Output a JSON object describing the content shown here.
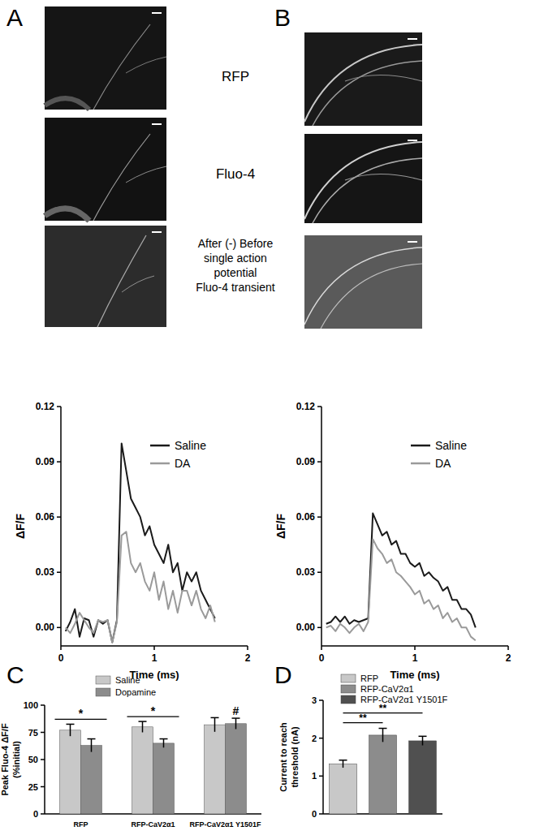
{
  "panel_labels": [
    "A",
    "B",
    "C",
    "D"
  ],
  "image_labels": {
    "rfp": "RFP",
    "fluo4": "Fluo-4",
    "difference": [
      "After (-) Before",
      "single action",
      "potential",
      "Fluo-4 transient"
    ]
  },
  "chart_data": [
    {
      "type": "line",
      "x": [
        0.05,
        0.1,
        0.15,
        0.2,
        0.25,
        0.3,
        0.35,
        0.4,
        0.45,
        0.5,
        0.55,
        0.6,
        0.65,
        0.7,
        0.75,
        0.8,
        0.85,
        0.9,
        0.95,
        1.0,
        1.05,
        1.1,
        1.15,
        1.2,
        1.25,
        1.3,
        1.35,
        1.4,
        1.45,
        1.5,
        1.55,
        1.6,
        1.65
      ],
      "series": [
        {
          "name": "Saline",
          "color": "#1a1a1a",
          "values": [
            -0.002,
            0.003,
            0.01,
            -0.005,
            0.005,
            0.004,
            -0.005,
            0.004,
            0.002,
            0.004,
            -0.008,
            0.004,
            0.1,
            0.085,
            0.07,
            0.065,
            0.06,
            0.05,
            0.055,
            0.045,
            0.04,
            0.035,
            0.045,
            0.03,
            0.035,
            0.02,
            0.03,
            0.025,
            0.03,
            0.02,
            0.015,
            0.01,
            0.005
          ]
        },
        {
          "name": "DA",
          "color": "#9a9a9a",
          "values": [
            0,
            -0.003,
            0.002,
            0.008,
            0.004,
            0,
            -0.003,
            0.004,
            0.003,
            0.004,
            -0.008,
            0.003,
            0.05,
            0.052,
            0.035,
            0.03,
            0.035,
            0.025,
            0.02,
            0.03,
            0.015,
            0.025,
            0.01,
            0.02,
            0.008,
            0.02,
            0.02,
            0.012,
            0.02,
            0.01,
            0.005,
            0.012,
            0.003
          ]
        }
      ],
      "x_label": "Time (ms)",
      "y_label": "ΔF/F",
      "xlim": [
        0,
        2
      ],
      "ylim": [
        -0.01,
        0.12
      ],
      "xticks": [
        0,
        1,
        2
      ],
      "yticks": [
        {
          "value": 0,
          "label": "0.00"
        },
        0.03,
        0.06,
        0.09,
        0.12
      ],
      "legend": "upper right"
    },
    {
      "type": "line",
      "x": [
        0.05,
        0.1,
        0.15,
        0.2,
        0.25,
        0.3,
        0.35,
        0.4,
        0.45,
        0.5,
        0.55,
        0.6,
        0.65,
        0.7,
        0.75,
        0.8,
        0.85,
        0.9,
        0.95,
        1.0,
        1.05,
        1.1,
        1.15,
        1.2,
        1.25,
        1.3,
        1.35,
        1.4,
        1.45,
        1.5,
        1.55,
        1.6,
        1.65
      ],
      "series": [
        {
          "name": "Saline",
          "color": "#1a1a1a",
          "values": [
            0.002,
            0.003,
            0.006,
            0.003,
            0.006,
            0.002,
            0.004,
            0.003,
            0.004,
            0.005,
            0.062,
            0.056,
            0.05,
            0.052,
            0.045,
            0.047,
            0.04,
            0.04,
            0.035,
            0.033,
            0.035,
            0.028,
            0.03,
            0.027,
            0.025,
            0.02,
            0.022,
            0.015,
            0.015,
            0.01,
            0.01,
            0.007,
            0
          ]
        },
        {
          "name": "DA",
          "color": "#9a9a9a",
          "values": [
            0,
            0.001,
            -0.002,
            0.002,
            0,
            -0.003,
            0,
            0.002,
            -0.002,
            0.003,
            0.048,
            0.043,
            0.04,
            0.035,
            0.037,
            0.03,
            0.028,
            0.025,
            0.022,
            0.018,
            0.02,
            0.013,
            0.015,
            0.01,
            0.012,
            0.005,
            0.008,
            0.003,
            0.005,
            0,
            0,
            -0.005,
            -0.007
          ]
        }
      ],
      "x_label": "Time (ms)",
      "y_label": "ΔF/F",
      "xlim": [
        0,
        2
      ],
      "ylim": [
        -0.01,
        0.12
      ],
      "xticks": [
        0,
        1,
        2
      ],
      "yticks": [
        {
          "value": 0,
          "label": "0.00"
        },
        0.03,
        0.06,
        0.09,
        0.12
      ],
      "legend": "upper right"
    },
    {
      "type": "bar",
      "categories": [
        "RFP",
        "RFP-CaV2α1",
        "RFP-CaV2α1 Y1501F"
      ],
      "series": [
        {
          "name": "Saline",
          "color": "#c8c8c8",
          "values": [
            77,
            80,
            82
          ],
          "errors": [
            5.5,
            5,
            6.5
          ]
        },
        {
          "name": "Dopamine",
          "color": "#8c8c8c",
          "values": [
            63,
            65,
            83
          ],
          "errors": [
            6,
            4,
            5
          ]
        }
      ],
      "y_label": [
        "Peak Fluo-4 ΔF/F",
        "(%initial)"
      ],
      "ylim": [
        0,
        100
      ],
      "yticks": [
        0,
        25,
        50,
        75,
        100
      ],
      "legend": "upper left",
      "annotations": [
        {
          "text": "*",
          "category": 0
        },
        {
          "text": "*",
          "category": 1
        },
        {
          "text": "#",
          "category": 2,
          "series": 1
        }
      ]
    },
    {
      "type": "bar",
      "categories": [
        "RFP",
        "RFP-CaV2α1",
        "RFP-CaV2α1 Y1501F"
      ],
      "values": [
        1.32,
        2.08,
        1.93
      ],
      "errors": [
        0.1,
        0.18,
        0.12
      ],
      "colors": [
        "#c8c8c8",
        "#8c8c8c",
        "#505050"
      ],
      "y_label": [
        "Current to reach",
        "threshold (nA)"
      ],
      "ylim": [
        0,
        3
      ],
      "yticks": [
        0,
        1,
        2,
        3
      ],
      "legend": "upper left",
      "tick_labels": "y",
      "annotations": [
        {
          "text": "**",
          "from": 0,
          "to": 1
        },
        {
          "text": "**",
          "from": 0,
          "to": 2
        }
      ]
    }
  ]
}
